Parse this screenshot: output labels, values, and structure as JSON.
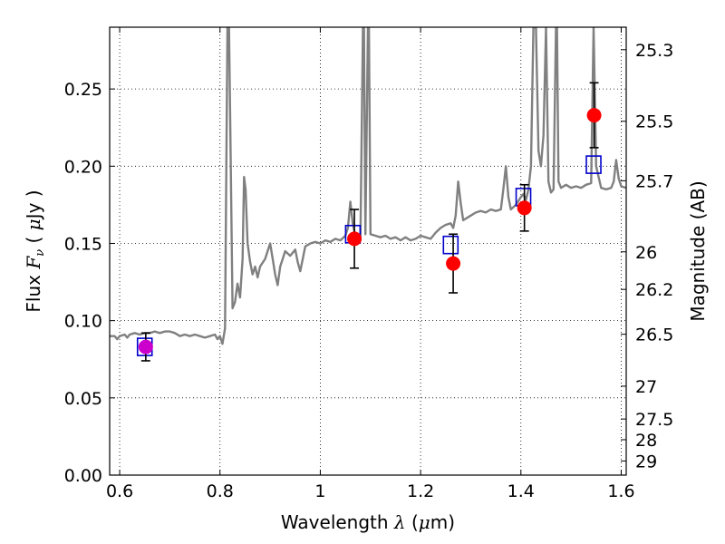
{
  "chart_data": {
    "type": "scatter",
    "xlabel": {
      "prefix": "Wavelength  ",
      "symbol": "λ",
      "unit": " (",
      "unit_sym": "μ",
      "unit_end": "m)"
    },
    "ylabel": {
      "prefix": "Flux  ",
      "symbol": "F",
      "sub": "ν",
      "unit": "  ( ",
      "unit_sym": "μ",
      "unit_end": "Jy )"
    },
    "y2label": "Magnitude (AB)",
    "xlim": [
      0.58,
      1.61
    ],
    "ylim": [
      0.0,
      0.29
    ],
    "grid": true,
    "x_ticks": [
      {
        "value": 0.6,
        "label": "0.6"
      },
      {
        "value": 0.8,
        "label": "0.8"
      },
      {
        "value": 1.0,
        "label": "1"
      },
      {
        "value": 1.2,
        "label": "1.2"
      },
      {
        "value": 1.4,
        "label": "1.4"
      },
      {
        "value": 1.6,
        "label": "1.6"
      }
    ],
    "y_ticks": [
      {
        "value": 0.0,
        "label": "0.00"
      },
      {
        "value": 0.05,
        "label": "0.05"
      },
      {
        "value": 0.1,
        "label": "0.10"
      },
      {
        "value": 0.15,
        "label": "0.15"
      },
      {
        "value": 0.2,
        "label": "0.20"
      },
      {
        "value": 0.25,
        "label": "0.25"
      }
    ],
    "mag_ticks": [
      {
        "value": 25.3,
        "label": "25.3"
      },
      {
        "value": 25.5,
        "label": "25.5"
      },
      {
        "value": 25.7,
        "label": "25.7"
      },
      {
        "value": 26.0,
        "label": "26"
      },
      {
        "value": 26.2,
        "label": "26.2"
      },
      {
        "value": 26.5,
        "label": "26.5"
      },
      {
        "value": 27.0,
        "label": "27"
      },
      {
        "value": 27.5,
        "label": "27.5"
      },
      {
        "value": 28.0,
        "label": "28"
      },
      {
        "value": 29.0,
        "label": "29"
      }
    ],
    "series": [
      {
        "kind": "model_spectrum",
        "color": "#808080",
        "points": [
          [
            0.58,
            0.09
          ],
          [
            0.59,
            0.09
          ],
          [
            0.595,
            0.088
          ],
          [
            0.6,
            0.09
          ],
          [
            0.61,
            0.091
          ],
          [
            0.615,
            0.089
          ],
          [
            0.62,
            0.091
          ],
          [
            0.63,
            0.092
          ],
          [
            0.64,
            0.091
          ],
          [
            0.65,
            0.092
          ],
          [
            0.66,
            0.092
          ],
          [
            0.67,
            0.093
          ],
          [
            0.68,
            0.092
          ],
          [
            0.69,
            0.093
          ],
          [
            0.7,
            0.093
          ],
          [
            0.71,
            0.092
          ],
          [
            0.72,
            0.09
          ],
          [
            0.73,
            0.091
          ],
          [
            0.74,
            0.09
          ],
          [
            0.75,
            0.091
          ],
          [
            0.76,
            0.09
          ],
          [
            0.77,
            0.089
          ],
          [
            0.78,
            0.09
          ],
          [
            0.79,
            0.091
          ],
          [
            0.795,
            0.088
          ],
          [
            0.8,
            0.09
          ],
          [
            0.805,
            0.085
          ],
          [
            0.81,
            0.095
          ],
          [
            0.815,
            0.29
          ],
          [
            0.818,
            0.29
          ],
          [
            0.82,
            0.24
          ],
          [
            0.825,
            0.108
          ],
          [
            0.83,
            0.112
          ],
          [
            0.835,
            0.124
          ],
          [
            0.84,
            0.115
          ],
          [
            0.845,
            0.14
          ],
          [
            0.848,
            0.193
          ],
          [
            0.851,
            0.185
          ],
          [
            0.855,
            0.15
          ],
          [
            0.86,
            0.138
          ],
          [
            0.865,
            0.13
          ],
          [
            0.87,
            0.135
          ],
          [
            0.875,
            0.128
          ],
          [
            0.88,
            0.135
          ],
          [
            0.89,
            0.14
          ],
          [
            0.895,
            0.145
          ],
          [
            0.9,
            0.15
          ],
          [
            0.905,
            0.14
          ],
          [
            0.91,
            0.13
          ],
          [
            0.915,
            0.123
          ],
          [
            0.92,
            0.135
          ],
          [
            0.93,
            0.145
          ],
          [
            0.94,
            0.142
          ],
          [
            0.95,
            0.146
          ],
          [
            0.955,
            0.138
          ],
          [
            0.96,
            0.132
          ],
          [
            0.965,
            0.14
          ],
          [
            0.97,
            0.148
          ],
          [
            0.98,
            0.15
          ],
          [
            0.99,
            0.151
          ],
          [
            1.0,
            0.15
          ],
          [
            1.01,
            0.152
          ],
          [
            1.02,
            0.151
          ],
          [
            1.03,
            0.153
          ],
          [
            1.04,
            0.152
          ],
          [
            1.05,
            0.155
          ],
          [
            1.055,
            0.16
          ],
          [
            1.06,
            0.177
          ],
          [
            1.065,
            0.162
          ],
          [
            1.07,
            0.155
          ],
          [
            1.08,
            0.152
          ],
          [
            1.085,
            0.29
          ],
          [
            1.087,
            0.29
          ],
          [
            1.09,
            0.156
          ],
          [
            1.095,
            0.29
          ],
          [
            1.097,
            0.29
          ],
          [
            1.1,
            0.156
          ],
          [
            1.11,
            0.155
          ],
          [
            1.12,
            0.154
          ],
          [
            1.13,
            0.155
          ],
          [
            1.14,
            0.153
          ],
          [
            1.15,
            0.154
          ],
          [
            1.16,
            0.152
          ],
          [
            1.17,
            0.154
          ],
          [
            1.18,
            0.152
          ],
          [
            1.19,
            0.153
          ],
          [
            1.2,
            0.155
          ],
          [
            1.21,
            0.154
          ],
          [
            1.22,
            0.153
          ],
          [
            1.23,
            0.157
          ],
          [
            1.24,
            0.16
          ],
          [
            1.25,
            0.162
          ],
          [
            1.26,
            0.163
          ],
          [
            1.265,
            0.16
          ],
          [
            1.27,
            0.168
          ],
          [
            1.275,
            0.19
          ],
          [
            1.28,
            0.176
          ],
          [
            1.285,
            0.165
          ],
          [
            1.29,
            0.166
          ],
          [
            1.3,
            0.168
          ],
          [
            1.31,
            0.17
          ],
          [
            1.32,
            0.171
          ],
          [
            1.33,
            0.17
          ],
          [
            1.34,
            0.172
          ],
          [
            1.35,
            0.171
          ],
          [
            1.36,
            0.172
          ],
          [
            1.365,
            0.185
          ],
          [
            1.37,
            0.2
          ],
          [
            1.375,
            0.18
          ],
          [
            1.38,
            0.172
          ],
          [
            1.39,
            0.175
          ],
          [
            1.4,
            0.18
          ],
          [
            1.405,
            0.182
          ],
          [
            1.41,
            0.178
          ],
          [
            1.415,
            0.185
          ],
          [
            1.42,
            0.2
          ],
          [
            1.425,
            0.29
          ],
          [
            1.43,
            0.29
          ],
          [
            1.435,
            0.21
          ],
          [
            1.44,
            0.2
          ],
          [
            1.445,
            0.22
          ],
          [
            1.45,
            0.29
          ],
          [
            1.455,
            0.19
          ],
          [
            1.46,
            0.183
          ],
          [
            1.465,
            0.185
          ],
          [
            1.47,
            0.29
          ],
          [
            1.472,
            0.29
          ],
          [
            1.475,
            0.19
          ],
          [
            1.48,
            0.186
          ],
          [
            1.49,
            0.188
          ],
          [
            1.5,
            0.186
          ],
          [
            1.51,
            0.187
          ],
          [
            1.52,
            0.186
          ],
          [
            1.53,
            0.188
          ],
          [
            1.54,
            0.189
          ],
          [
            1.545,
            0.29
          ],
          [
            1.55,
            0.2
          ],
          [
            1.56,
            0.186
          ],
          [
            1.57,
            0.185
          ],
          [
            1.58,
            0.186
          ],
          [
            1.585,
            0.19
          ],
          [
            1.59,
            0.204
          ],
          [
            1.595,
            0.192
          ],
          [
            1.6,
            0.187
          ],
          [
            1.61,
            0.186
          ]
        ]
      },
      {
        "kind": "model_photometry",
        "marker": "open-square",
        "color": "#0000cc",
        "points": [
          [
            0.65,
            0.083
          ],
          [
            1.065,
            0.156
          ],
          [
            1.26,
            0.149
          ],
          [
            1.405,
            0.18
          ],
          [
            1.545,
            0.201
          ]
        ]
      },
      {
        "kind": "observed_photometry",
        "marker": "filled-circle",
        "color": "#ff0000",
        "points": [
          {
            "x": 0.652,
            "y": 0.083,
            "err": 0.009,
            "color": "#cc00cc"
          },
          {
            "x": 1.068,
            "y": 0.153,
            "err": 0.019
          },
          {
            "x": 1.265,
            "y": 0.137,
            "err": 0.019
          },
          {
            "x": 1.407,
            "y": 0.173,
            "err": 0.015
          },
          {
            "x": 1.546,
            "y": 0.233,
            "err": 0.021
          }
        ]
      }
    ]
  }
}
